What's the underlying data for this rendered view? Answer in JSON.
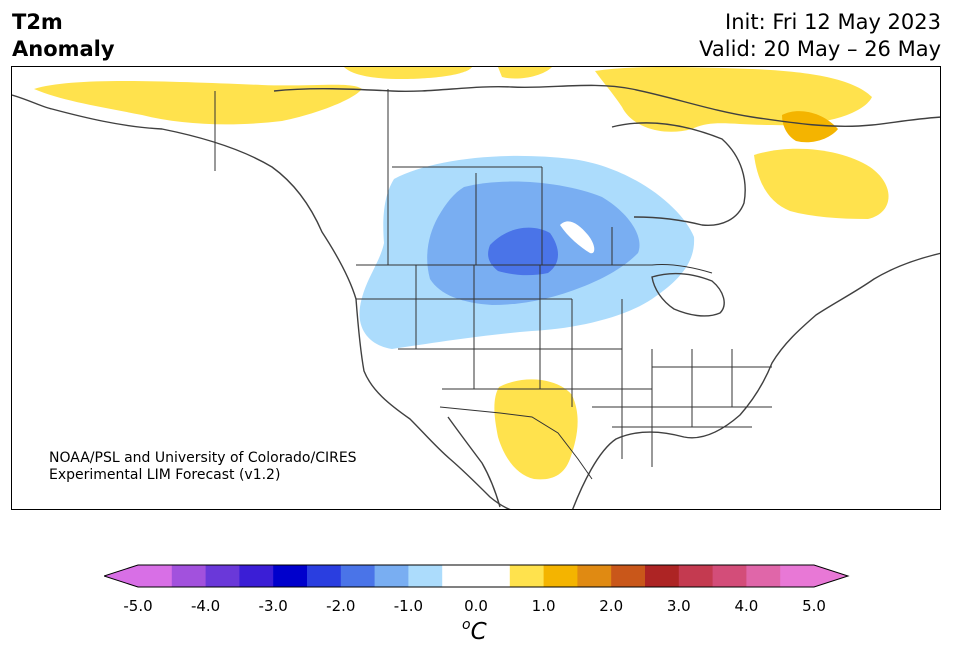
{
  "header": {
    "title_line1": "T2m",
    "title_line2": "Anomaly",
    "init": "Init: Fri 12 May 2023",
    "valid": "Valid: 20 May – 26 May"
  },
  "credit": {
    "line1": "NOAA/PSL and University of Colorado/CIRES",
    "line2": "Experimental LIM Forecast (v1.2)"
  },
  "colorbar": {
    "unit_sup": "o",
    "unit": "C",
    "ticks": [
      "-5.0",
      "-4.0",
      "-3.0",
      "-2.0",
      "-1.0",
      "0.0",
      "1.0",
      "2.0",
      "3.0",
      "4.0",
      "5.0"
    ],
    "colors": [
      "#d86fe6",
      "#a251dd",
      "#6a38d9",
      "#3b1ed6",
      "#0000cc",
      "#2a3ee0",
      "#4a74e8",
      "#79aef2",
      "#acdcfc",
      "#ffffff",
      "#ffffff",
      "#ffe24d",
      "#f4b400",
      "#e08a12",
      "#c9571a",
      "#ad2424",
      "#c43a50",
      "#d34d79",
      "#e066a9",
      "#e878d6"
    ],
    "under_color": "#d86fe6",
    "over_color": "#e878d6"
  },
  "map": {
    "colors": {
      "warm_light": "#ffe24d",
      "warm_medium": "#f4b400",
      "cool_light": "#acdcfc",
      "cool_medium": "#79aef2",
      "cool_dark": "#4a74e8",
      "coast": "#404040",
      "border": "#333333"
    }
  }
}
